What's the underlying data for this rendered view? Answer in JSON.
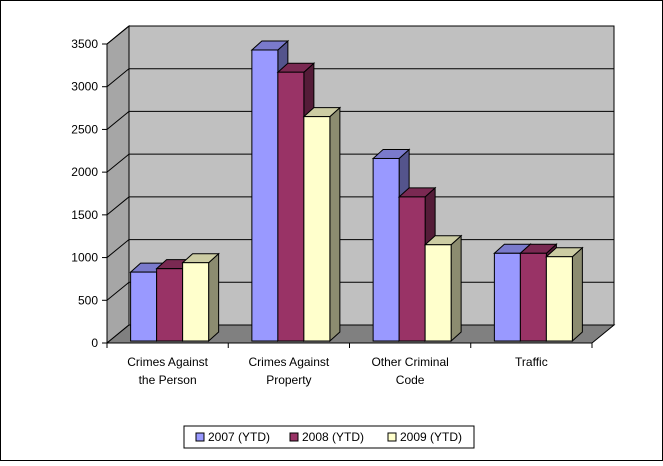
{
  "chart_data": {
    "type": "bar",
    "title": "",
    "xlabel": "",
    "ylabel": "",
    "ylim": [
      0,
      3500
    ],
    "yticks": [
      0,
      500,
      1000,
      1500,
      2000,
      2500,
      3000,
      3500
    ],
    "grid": true,
    "legend_position": "bottom",
    "three_d": true,
    "categories": [
      [
        "Crimes Against",
        "the Person"
      ],
      [
        "Crimes Against",
        "Property"
      ],
      [
        "Other Criminal",
        "Code"
      ],
      [
        "Traffic"
      ]
    ],
    "series": [
      {
        "name": "2007 (YTD)",
        "color": "#9999FF",
        "values": [
          830,
          3430,
          2160,
          1050
        ]
      },
      {
        "name": "2008 (YTD)",
        "color": "#993366",
        "values": [
          870,
          3170,
          1710,
          1050
        ]
      },
      {
        "name": "2009 (YTD)",
        "color": "#FFFFCC",
        "values": [
          940,
          2650,
          1150,
          1010
        ]
      }
    ],
    "colors": {
      "plot_back_wall": "#C0C0C0",
      "floor": "#808080",
      "left_wall": "#A6A6A6",
      "gridline": "#000000"
    }
  }
}
